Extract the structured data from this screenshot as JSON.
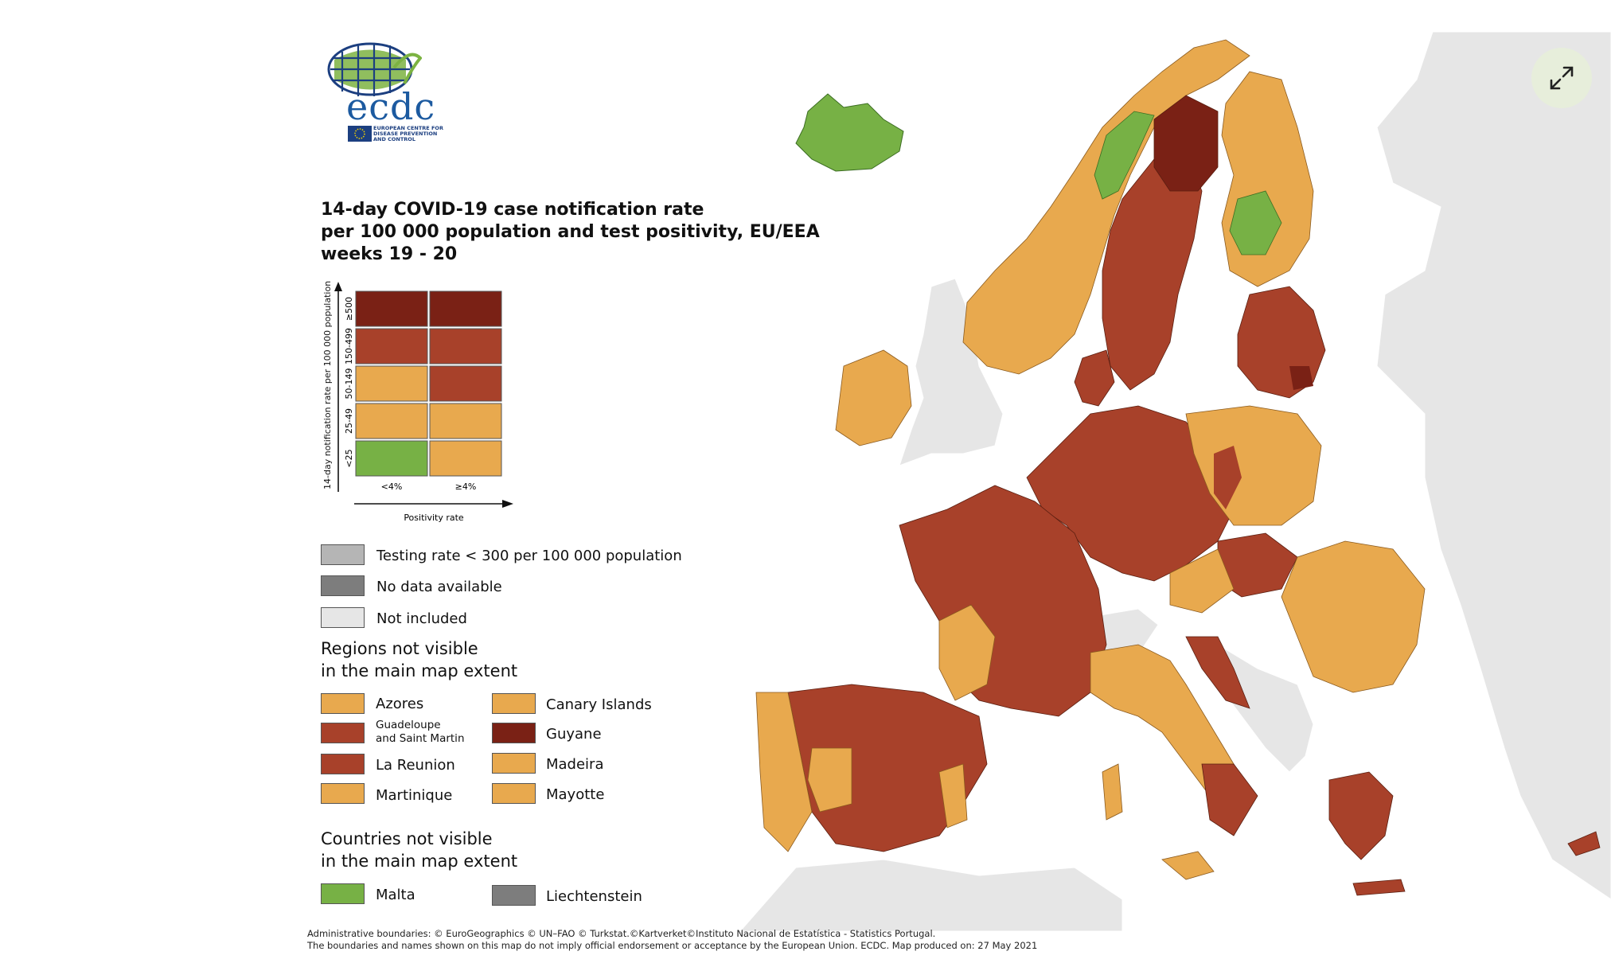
{
  "logo": {
    "word": "ecdc",
    "subtitle_lines": [
      "EUROPEAN CENTRE FOR",
      "DISEASE PREVENTION",
      "AND CONTROL"
    ]
  },
  "title_lines": [
    "14-day COVID-19 case notification rate",
    "per 100 000 population and test positivity, EU/EEA",
    "weeks 19 - 20"
  ],
  "matrix": {
    "y_axis_label": "14-day notification rate per 100 000 population",
    "x_axis_label": "Positivity rate",
    "columns": [
      "<4%",
      "≥4%"
    ],
    "rows": [
      {
        "label": "≥500",
        "colors": [
          "#7a2115",
          "#7a2115"
        ]
      },
      {
        "label": "150-499",
        "colors": [
          "#a8412a",
          "#a8412a"
        ]
      },
      {
        "label": "50-149",
        "colors": [
          "#e8a94e",
          "#a8412a"
        ]
      },
      {
        "label": "25-49",
        "colors": [
          "#e8a94e",
          "#e8a94e"
        ]
      },
      {
        "label": "<25",
        "colors": [
          "#77b145",
          "#e8a94e"
        ]
      }
    ]
  },
  "legend": {
    "testing_rate": {
      "label": "Testing rate < 300 per 100 000 population",
      "color": "#b5b5b5"
    },
    "no_data": {
      "label": "No data available",
      "color": "#7d7d7d"
    },
    "not_included": {
      "label": "Not included",
      "color": "#e6e6e6"
    }
  },
  "regions_section": {
    "title_lines": [
      "Regions not visible",
      "in the main map extent"
    ],
    "items": [
      {
        "label": "Azores",
        "color": "#e8a94e"
      },
      {
        "label": "Canary Islands",
        "color": "#e8a94e"
      },
      {
        "label": "Guadeloupe and Saint Martin",
        "label_lines": [
          "Guadeloupe",
          "and Saint Martin"
        ],
        "color": "#a8412a"
      },
      {
        "label": "Guyane",
        "color": "#7a2115"
      },
      {
        "label": "La Reunion",
        "color": "#a8412a"
      },
      {
        "label": "Madeira",
        "color": "#e8a94e"
      },
      {
        "label": "Martinique",
        "color": "#e8a94e"
      },
      {
        "label": "Mayotte",
        "color": "#e8a94e"
      }
    ]
  },
  "countries_section": {
    "title_lines": [
      "Countries not visible",
      "in the main map extent"
    ],
    "items": [
      {
        "label": "Malta",
        "color": "#77b145"
      },
      {
        "label": "Liechtenstein",
        "color": "#7d7d7d"
      }
    ]
  },
  "footer_lines": [
    "Administrative boundaries: © EuroGeographics © UN–FAO © Turkstat.©Kartverket©Instituto Nacional de Estatística - Statistics Portugal.",
    "The boundaries and names shown on this map do not imply official endorsement or acceptance by the European Union. ECDC. Map produced on: 27 May 2021"
  ],
  "colors": {
    "dark_red": "#7a2115",
    "red": "#a8412a",
    "orange": "#e8a94e",
    "green": "#77b145",
    "not_included_land": "#e6e6e6"
  },
  "expand_button": {
    "icon": "expand-icon"
  }
}
